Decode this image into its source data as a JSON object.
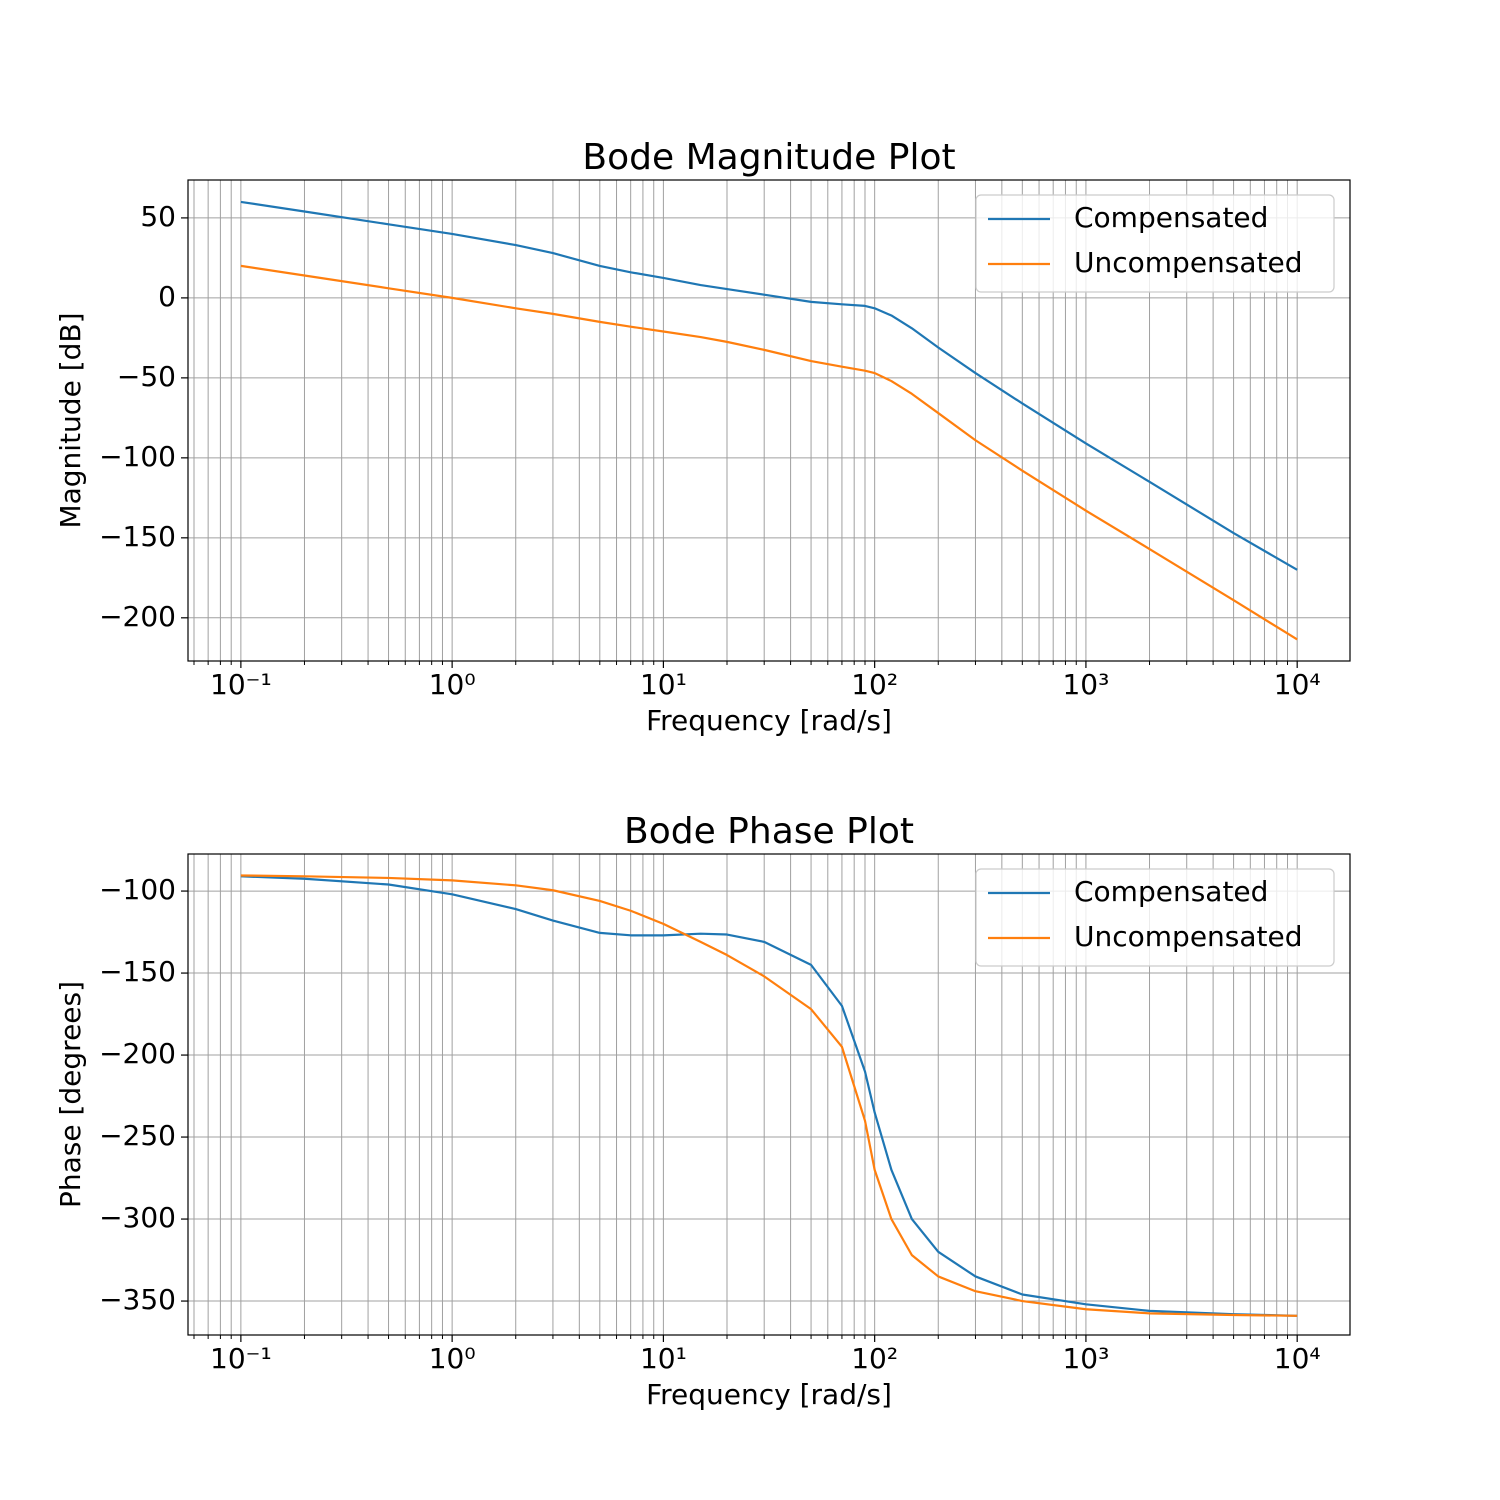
{
  "chart_data": [
    {
      "type": "line",
      "title": "Bode Magnitude Plot",
      "xlabel": "Frequency [rad/s]",
      "ylabel": "Magnitude [dB]",
      "xscale": "log",
      "grid": true,
      "legend": "upper right",
      "x": [
        0.1,
        0.2,
        0.5,
        1,
        2,
        3,
        5,
        7,
        10,
        15,
        20,
        30,
        50,
        70,
        90,
        100,
        120,
        150,
        200,
        300,
        500,
        1000,
        2000,
        5000,
        10000
      ],
      "series": [
        {
          "name": "Compensated",
          "color": "#1f77b4",
          "values": [
            60,
            54,
            46,
            40,
            33,
            28,
            20,
            16,
            12.5,
            8,
            5.5,
            2,
            -2.5,
            -4,
            -5,
            -6.5,
            -11,
            -19,
            -31,
            -47,
            -66,
            -91,
            -115,
            -147,
            -170
          ]
        },
        {
          "name": "Uncompensated",
          "color": "#ff7f0e",
          "values": [
            20,
            14,
            6,
            0,
            -6.5,
            -10,
            -15,
            -18,
            -21,
            -24.5,
            -27.5,
            -32.5,
            -39.5,
            -43,
            -45.5,
            -47,
            -52,
            -60,
            -72,
            -89,
            -108,
            -133,
            -157,
            -189,
            -213.5
          ]
        }
      ],
      "xlim": [
        0.0562,
        17783
      ],
      "ylim": [
        -227,
        73.7
      ],
      "xticks": [
        {
          "value": 0.1,
          "label": "10⁻¹"
        },
        {
          "value": 1,
          "label": "10⁰"
        },
        {
          "value": 10,
          "label": "10¹"
        },
        {
          "value": 100,
          "label": "10²"
        },
        {
          "value": 1000,
          "label": "10³"
        },
        {
          "value": 10000,
          "label": "10⁴"
        }
      ],
      "xminor": [
        0.06,
        0.07,
        0.08,
        0.09,
        0.2,
        0.3,
        0.4,
        0.5,
        0.6,
        0.7,
        0.8,
        0.9,
        2,
        3,
        4,
        5,
        6,
        7,
        8,
        9,
        20,
        30,
        40,
        50,
        60,
        70,
        80,
        90,
        200,
        300,
        400,
        500,
        600,
        700,
        800,
        900,
        2000,
        3000,
        4000,
        5000,
        6000,
        7000,
        8000,
        9000
      ],
      "yticks": [
        50,
        0,
        {
          "value": -50,
          "label": "−50"
        },
        {
          "value": -100,
          "label": "−100"
        },
        {
          "value": -150,
          "label": "−150"
        },
        {
          "value": -200,
          "label": "−200"
        }
      ]
    },
    {
      "type": "line",
      "title": "Bode Phase Plot",
      "xlabel": "Frequency [rad/s]",
      "ylabel": "Phase [degrees]",
      "xscale": "log",
      "grid": true,
      "legend": "upper right",
      "x": [
        0.1,
        0.2,
        0.5,
        1,
        2,
        3,
        5,
        7,
        10,
        15,
        20,
        30,
        50,
        70,
        90,
        100,
        120,
        150,
        200,
        300,
        500,
        1000,
        2000,
        5000,
        10000
      ],
      "series": [
        {
          "name": "Compensated",
          "color": "#1f77b4",
          "values": [
            -91,
            -92.5,
            -96,
            -102,
            -111,
            -118,
            -125.5,
            -127,
            -127,
            -126,
            -126.5,
            -131,
            -145,
            -170,
            -210,
            -235,
            -270,
            -300,
            -320,
            -335,
            -346,
            -352,
            -356,
            -358,
            -359
          ]
        },
        {
          "name": "Uncompensated",
          "color": "#ff7f0e",
          "values": [
            -90.5,
            -91,
            -92,
            -93.5,
            -96.5,
            -99.5,
            -106,
            -112,
            -120,
            -131,
            -139,
            -152,
            -172,
            -195,
            -240,
            -270,
            -300,
            -322,
            -335,
            -344,
            -350,
            -355,
            -357.5,
            -358.5,
            -359
          ]
        }
      ],
      "xlim": [
        0.0562,
        17783
      ],
      "ylim": [
        -370.7,
        -77.4
      ],
      "xticks": [
        {
          "value": 0.1,
          "label": "10⁻¹"
        },
        {
          "value": 1,
          "label": "10⁰"
        },
        {
          "value": 10,
          "label": "10¹"
        },
        {
          "value": 100,
          "label": "10²"
        },
        {
          "value": 1000,
          "label": "10³"
        },
        {
          "value": 10000,
          "label": "10⁴"
        }
      ],
      "xminor": [
        0.06,
        0.07,
        0.08,
        0.09,
        0.2,
        0.3,
        0.4,
        0.5,
        0.6,
        0.7,
        0.8,
        0.9,
        2,
        3,
        4,
        5,
        6,
        7,
        8,
        9,
        20,
        30,
        40,
        50,
        60,
        70,
        80,
        90,
        200,
        300,
        400,
        500,
        600,
        700,
        800,
        900,
        2000,
        3000,
        4000,
        5000,
        6000,
        7000,
        8000,
        9000
      ],
      "yticks": [
        {
          "value": -100,
          "label": "−100"
        },
        {
          "value": -150,
          "label": "−150"
        },
        {
          "value": -200,
          "label": "−200"
        },
        {
          "value": -250,
          "label": "−250"
        },
        {
          "value": -300,
          "label": "−300"
        },
        {
          "value": -350,
          "label": "−350"
        }
      ]
    }
  ]
}
